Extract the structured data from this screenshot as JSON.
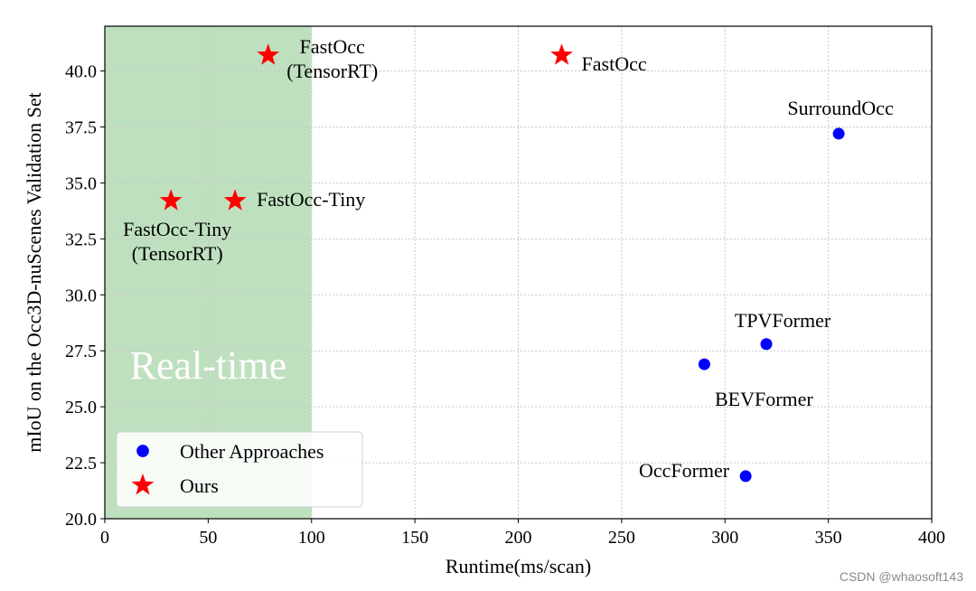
{
  "chart_data": {
    "type": "scatter",
    "xlabel": "Runtime(ms/scan)",
    "ylabel": "mIoU on the Occ3D-nuScenes Validation Set",
    "xlim": [
      0,
      400
    ],
    "ylim": [
      20,
      42
    ],
    "xticks": [
      "0",
      "50",
      "100",
      "150",
      "200",
      "250",
      "300",
      "350",
      "400"
    ],
    "yticks": [
      "20.0",
      "22.5",
      "25.0",
      "27.5",
      "30.0",
      "32.5",
      "35.0",
      "37.5",
      "40.0"
    ],
    "grid": true,
    "legend_position": "lower-left",
    "shaded_region": {
      "label": "Real-time",
      "x_from": 0,
      "x_to": 100,
      "color": "#bfe0bf"
    },
    "series": [
      {
        "name": "Other Approaches",
        "marker": "circle",
        "color": "#0000ff",
        "points": [
          {
            "x": 355,
            "y": 37.2,
            "label": "SurroundOcc"
          },
          {
            "x": 320,
            "y": 27.8,
            "label": "TPVFormer"
          },
          {
            "x": 290,
            "y": 26.9,
            "label": "BEVFormer"
          },
          {
            "x": 310,
            "y": 21.9,
            "label": "OccFormer"
          }
        ]
      },
      {
        "name": "Ours",
        "marker": "star",
        "color": "#ff0000",
        "points": [
          {
            "x": 79,
            "y": 40.7,
            "label": "FastOcc\n(TensorRT)"
          },
          {
            "x": 221,
            "y": 40.7,
            "label": "FastOcc"
          },
          {
            "x": 63,
            "y": 34.2,
            "label": "FastOcc-Tiny"
          },
          {
            "x": 32,
            "y": 34.2,
            "label": "FastOcc-Tiny\n(TensorRT)"
          }
        ]
      }
    ]
  },
  "watermark": "CSDN @whaosoft143"
}
